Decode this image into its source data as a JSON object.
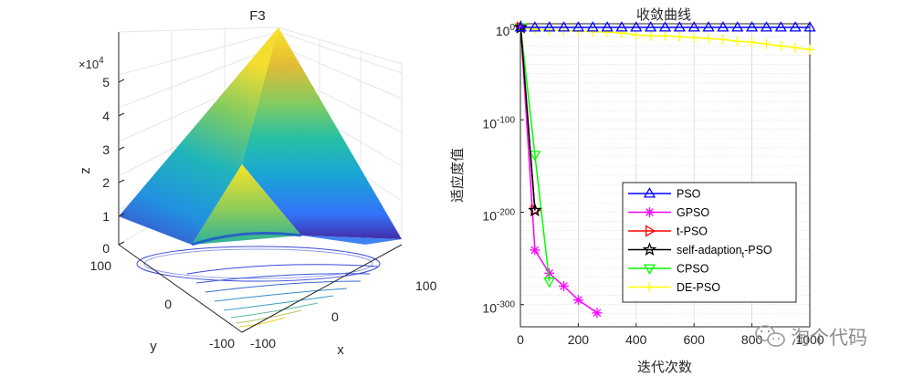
{
  "chart_data": [
    {
      "type": "surface3d",
      "title": "F3",
      "xlabel": "x",
      "ylabel": "y",
      "zlabel": "z",
      "exponent_label": "×10",
      "exponent_power": "4",
      "x_ticks": [
        "-100",
        "100"
      ],
      "y_ticks": [
        "-100",
        "0",
        "100"
      ],
      "x_mid_tick": "0",
      "z_ticks": [
        "0",
        "1",
        "2",
        "3",
        "4",
        "5"
      ],
      "xlim": [
        -100,
        100
      ],
      "ylim": [
        -100,
        100
      ],
      "zlim": [
        0,
        50000
      ],
      "colormap": [
        "#3e26a8",
        "#2c6ff8",
        "#13a2d6",
        "#20bea0",
        "#7fca5c",
        "#e1b92f",
        "#f9e321"
      ]
    },
    {
      "type": "line",
      "title": "收敛曲线",
      "xlabel": "迭代次数",
      "ylabel": "适应度值",
      "y_scale": "log",
      "xlim": [
        0,
        1000
      ],
      "x_ticks": [
        "0",
        "200",
        "400",
        "600",
        "800",
        "1000"
      ],
      "y_ticks": [
        "10",
        "10",
        "10",
        "10"
      ],
      "y_tick_exponents": [
        "0",
        "-100",
        "-200",
        "-300"
      ],
      "y_tick_values": [
        0,
        -100,
        -200,
        -300
      ],
      "ylim_log10": [
        -324,
        4
      ],
      "grid": true,
      "legend_position": "lower-right",
      "series": [
        {
          "name": "PSO",
          "color": "#0000ff",
          "marker": "triangle-up",
          "x": [
            1,
            50,
            100,
            150,
            200,
            250,
            300,
            350,
            400,
            450,
            500,
            550,
            600,
            650,
            700,
            750,
            800,
            850,
            900,
            950,
            1000
          ],
          "y": [
            0,
            0,
            0,
            0,
            0,
            0,
            0,
            0,
            0,
            0,
            0,
            0,
            0,
            0,
            0,
            0,
            0,
            0,
            0,
            0,
            0
          ]
        },
        {
          "name": "GPSO",
          "color": "#ff00ff",
          "marker": "asterisk",
          "x": [
            1,
            50,
            100,
            150,
            200,
            265
          ],
          "y": [
            0,
            -241,
            -266,
            -280,
            -295,
            -309
          ]
        },
        {
          "name": "t-PSO",
          "color": "#ff0000",
          "marker": "triangle-right",
          "x": [
            1,
            50
          ],
          "y": [
            0,
            -198
          ]
        },
        {
          "name": "self-adaption",
          "name_subscript": "t",
          "name_suffix": "-PSO",
          "color": "#000000",
          "marker": "pentagram",
          "x": [
            1,
            50
          ],
          "y": [
            0,
            -198
          ]
        },
        {
          "name": "CPSO",
          "color": "#00ff00",
          "marker": "triangle-down",
          "x": [
            1,
            50,
            100
          ],
          "y": [
            0,
            -138,
            -275
          ]
        },
        {
          "name": "DE-PSO",
          "color": "#ffff00",
          "marker": "plus",
          "x": [
            1,
            50,
            100,
            150,
            200,
            250,
            300,
            350,
            400,
            450,
            500,
            550,
            600,
            650,
            700,
            750,
            800,
            850,
            900,
            950,
            1000
          ],
          "y": [
            0,
            -2,
            -3,
            -3.5,
            -4,
            -4.5,
            -5,
            -6,
            -8,
            -9,
            -9,
            -10,
            -11,
            -12,
            -13,
            -15,
            -16,
            -18,
            -20,
            -22,
            -24
          ]
        }
      ]
    }
  ],
  "watermark": "淘个代码"
}
